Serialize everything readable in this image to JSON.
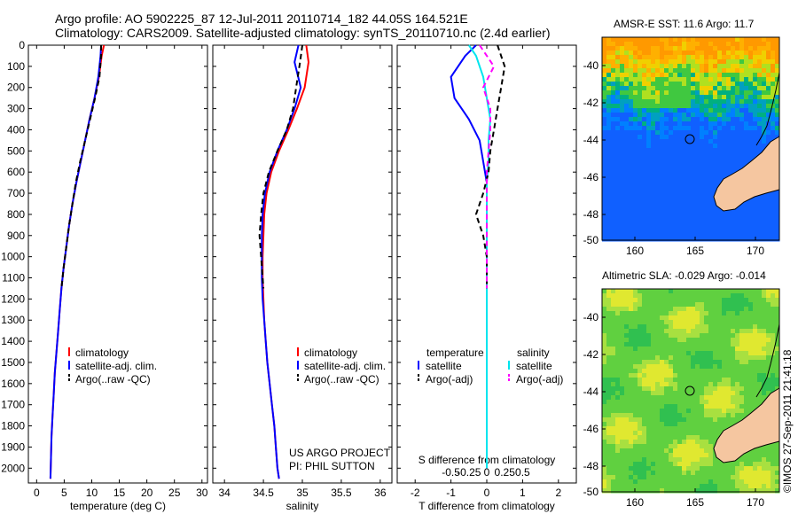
{
  "title_line1": "Argo profile: AO 5902225_87 12-Jul-2011 20110714_182 44.05S 164.521E",
  "title_line2": "Climatology: CARS2009. Satellite-adjusted climatology: synTS_20110710.nc (2.4d earlier)",
  "credit": "©IMOS 27-Sep-2011 21:41:18",
  "colors": {
    "climatology": "#ff0000",
    "satellite": "#0000ff",
    "argo": "#000000",
    "sal_satellite": "#00e5ee",
    "sal_argo": "#ff00ff",
    "land": "#f5c6a0"
  },
  "chart_data": [
    {
      "type": "line",
      "xlabel": "temperature (deg C)",
      "xlim": [
        -1.5,
        31
      ],
      "ylim": [
        0,
        2070
      ],
      "xticks": [
        "0",
        "5",
        "10",
        "15",
        "20",
        "25",
        "30"
      ],
      "yticks": [
        "0",
        "100",
        "200",
        "300",
        "400",
        "500",
        "600",
        "700",
        "800",
        "900",
        "1000",
        "1100",
        "1200",
        "1300",
        "1400",
        "1500",
        "1600",
        "1700",
        "1800",
        "1900",
        "2000"
      ],
      "legend": [
        "climatology",
        "satellite-adj. clim.",
        "Argo(..raw -QC)"
      ],
      "series": [
        {
          "name": "climatology",
          "color_key": "climatology",
          "x": [
            12.2,
            11.8,
            11.3,
            10.5,
            9.6,
            8.8,
            8.0,
            7.2,
            6.5,
            5.9,
            5.4,
            4.9,
            4.5,
            4.2,
            3.9,
            3.6,
            3.3,
            3.1,
            2.9,
            2.7,
            2.6,
            2.5
          ],
          "y": [
            0,
            50,
            150,
            250,
            350,
            450,
            550,
            650,
            750,
            850,
            950,
            1050,
            1150,
            1250,
            1350,
            1450,
            1550,
            1650,
            1750,
            1850,
            1950,
            2050
          ]
        },
        {
          "name": "satellite-adj. clim.",
          "color_key": "satellite",
          "x": [
            11.7,
            11.6,
            11.2,
            10.5,
            9.6,
            8.8,
            8.0,
            7.2,
            6.5,
            5.9,
            5.4,
            4.9,
            4.5,
            4.2,
            3.9,
            3.6,
            3.3,
            3.1,
            2.9,
            2.7,
            2.6,
            2.5
          ],
          "y": [
            0,
            50,
            150,
            250,
            350,
            450,
            550,
            650,
            750,
            850,
            950,
            1050,
            1150,
            1250,
            1350,
            1450,
            1550,
            1650,
            1750,
            1850,
            1950,
            2050
          ]
        },
        {
          "name": "Argo(..raw -QC)",
          "color_key": "argo",
          "dashed": true,
          "x": [
            11.7,
            11.7,
            11.4,
            10.6,
            9.7,
            8.8,
            7.9,
            7.1,
            6.5,
            5.9,
            5.4,
            4.9,
            4.5
          ],
          "y": [
            0,
            50,
            150,
            250,
            350,
            450,
            550,
            650,
            750,
            850,
            950,
            1050,
            1150
          ]
        }
      ]
    },
    {
      "type": "line",
      "xlabel": "salinity",
      "xlim": [
        33.85,
        36.15
      ],
      "ylim": [
        0,
        2070
      ],
      "xticks": [
        "34",
        "34.5",
        "35",
        "35.5",
        "36"
      ],
      "legend": [
        "climatology",
        "satellite-adj. clim.",
        "Argo(..raw -QC)"
      ],
      "annotation": [
        "US ARGO PROJECT",
        "PI: PHIL SUTTON"
      ],
      "series": [
        {
          "name": "climatology",
          "color_key": "climatology",
          "x": [
            35.05,
            35.08,
            35.03,
            34.93,
            34.82,
            34.7,
            34.6,
            34.54,
            34.51,
            34.5,
            34.49,
            34.49,
            34.5,
            34.51,
            34.53,
            34.55,
            34.58,
            34.61,
            34.64,
            34.66,
            34.68,
            34.7
          ],
          "y": [
            0,
            80,
            200,
            300,
            400,
            500,
            600,
            700,
            800,
            900,
            1000,
            1100,
            1200,
            1300,
            1400,
            1500,
            1600,
            1700,
            1800,
            1900,
            2000,
            2050
          ]
        },
        {
          "name": "satellite-adj. clim.",
          "color_key": "satellite",
          "x": [
            34.95,
            34.9,
            34.98,
            34.9,
            34.8,
            34.68,
            34.58,
            34.52,
            34.49,
            34.48,
            34.48,
            34.48,
            34.49,
            34.51,
            34.53,
            34.55,
            34.58,
            34.61,
            34.64,
            34.66,
            34.68,
            34.7
          ],
          "y": [
            0,
            80,
            200,
            300,
            400,
            500,
            600,
            700,
            800,
            900,
            1000,
            1100,
            1200,
            1300,
            1400,
            1500,
            1600,
            1700,
            1800,
            1900,
            2000,
            2050
          ]
        },
        {
          "name": "Argo(..raw -QC)",
          "color_key": "argo",
          "dashed": true,
          "x": [
            35.0,
            34.97,
            34.92,
            34.88,
            34.8,
            34.68,
            34.57,
            34.5,
            34.47,
            34.45,
            34.47,
            34.49,
            34.5
          ],
          "y": [
            0,
            80,
            200,
            300,
            400,
            500,
            600,
            700,
            800,
            900,
            1000,
            1100,
            1150
          ]
        }
      ]
    },
    {
      "type": "line",
      "xlabel": "T difference from climatology",
      "xlabel_top": "S difference from climatology",
      "xlim": [
        -2.5,
        2.5
      ],
      "ylim": [
        0,
        2070
      ],
      "xticks": [
        "-2",
        "-1",
        "0",
        "1",
        "2"
      ],
      "xticks_s": [
        "-0.5",
        "-0.25",
        "0",
        "0.25",
        "0.5"
      ],
      "legend_left": [
        "temperature",
        "satellite",
        "Argo(-adj)"
      ],
      "legend_right": [
        "salinity",
        "satellite",
        "Argo(-adj)"
      ],
      "series": [
        {
          "name": "temperature satellite",
          "color_key": "satellite",
          "x": [
            -0.3,
            -0.6,
            -1.0,
            -0.9,
            -0.5,
            -0.2,
            -0.1,
            0,
            0,
            0,
            0,
            0,
            0,
            0,
            0,
            0,
            0,
            0,
            0,
            0,
            0
          ],
          "y": [
            0,
            50,
            150,
            250,
            350,
            450,
            550,
            650,
            750,
            850,
            950,
            1050,
            1150,
            1250,
            1350,
            1450,
            1550,
            1650,
            1750,
            1850,
            2000
          ]
        },
        {
          "name": "salinity satellite",
          "color_key": "sal_satellite",
          "x": [
            -0.5,
            -0.3,
            -0.1,
            0.0,
            0.1,
            0.05,
            0.05,
            0,
            0,
            0,
            0,
            0,
            0,
            0,
            0,
            0,
            0,
            0,
            0,
            0,
            0
          ],
          "y": [
            0,
            50,
            150,
            250,
            350,
            450,
            550,
            650,
            750,
            850,
            950,
            1050,
            1150,
            1250,
            1350,
            1450,
            1550,
            1650,
            1750,
            1850,
            2000
          ]
        },
        {
          "name": "temperature Argo(-adj)",
          "color_key": "argo",
          "dashed": true,
          "x": [
            0.3,
            0.5,
            0.4,
            0.3,
            0.2,
            0.1,
            0.05,
            -0.1,
            -0.3,
            -0.1,
            0,
            0,
            0
          ],
          "y": [
            0,
            100,
            200,
            300,
            400,
            500,
            600,
            700,
            800,
            900,
            1000,
            1100,
            1150
          ]
        },
        {
          "name": "salinity Argo(-adj)",
          "color_key": "sal_argo",
          "dashed": true,
          "x": [
            -0.2,
            0.2,
            -0.1,
            0.1,
            0.1,
            0.05,
            0,
            0,
            0,
            0,
            0,
            0,
            0
          ],
          "y": [
            0,
            100,
            200,
            300,
            400,
            500,
            600,
            700,
            800,
            900,
            1000,
            1100,
            1150
          ]
        }
      ]
    }
  ],
  "maps": [
    {
      "title": "AMSR-E SST: 11.6 Argo: 11.7",
      "kind": "sst",
      "xticks": [
        "160",
        "165",
        "170"
      ],
      "yticks": [
        "-40",
        "-42",
        "-44",
        "-46",
        "-48",
        "-50"
      ]
    },
    {
      "title": "Altimetric SLA: -0.029 Argo: -0.014",
      "kind": "sla",
      "xticks": [
        "160",
        "165",
        "170"
      ],
      "yticks": [
        "-40",
        "-42",
        "-44",
        "-46",
        "-48",
        "-50"
      ]
    }
  ]
}
